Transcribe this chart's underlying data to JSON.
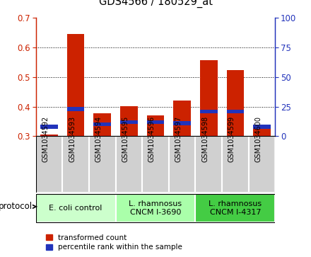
{
  "title": "GDS4566 / 180529_at",
  "samples": [
    "GSM1034592",
    "GSM1034593",
    "GSM1034594",
    "GSM1034595",
    "GSM1034596",
    "GSM1034597",
    "GSM1034598",
    "GSM1034599",
    "GSM1034600"
  ],
  "transformed_count": [
    0.305,
    0.645,
    0.377,
    0.402,
    0.37,
    0.42,
    0.558,
    0.523,
    0.333
  ],
  "percentile_rank": [
    8.0,
    23.0,
    10.0,
    12.0,
    12.0,
    11.0,
    21.0,
    21.0,
    8.0
  ],
  "bar_bottom": 0.3,
  "ylim_left": [
    0.3,
    0.7
  ],
  "ylim_right": [
    0,
    100
  ],
  "yticks_left": [
    0.3,
    0.4,
    0.5,
    0.6,
    0.7
  ],
  "yticks_right": [
    0,
    25,
    50,
    75,
    100
  ],
  "red_color": "#cc2200",
  "blue_color": "#2233bb",
  "bar_width": 0.65,
  "protocol_info": [
    {
      "label": "E. coli control",
      "start": 0,
      "end": 3,
      "color": "#ccffcc"
    },
    {
      "label": "L. rhamnosus\nCNCM I-3690",
      "start": 3,
      "end": 6,
      "color": "#aaffaa"
    },
    {
      "label": "L. rhamnosus\nCNCM I-4317",
      "start": 6,
      "end": 9,
      "color": "#44cc44"
    }
  ],
  "sample_cell_color": "#d0d0d0",
  "legend_entries": [
    "transformed count",
    "percentile rank within the sample"
  ],
  "protocol_label": "protocol"
}
